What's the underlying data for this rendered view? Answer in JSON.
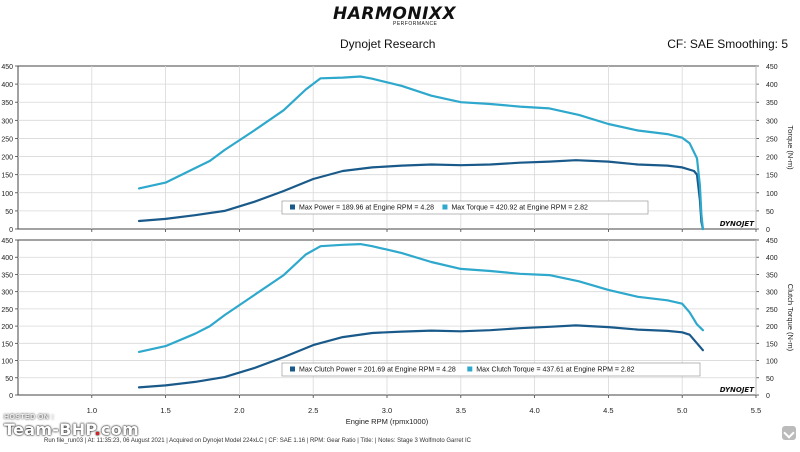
{
  "header": {
    "logo_text": "HARMONIXX",
    "logo_sub": "PERFORMANCE",
    "title": "Dynojet Research",
    "cf_smoothing": "CF: SAE Smoothing: 5"
  },
  "footer": {
    "run_info": "Run file_run03 | At: 11:35:23, 06 August 2021 | Acquired on Dynojet Model 224xLC | CF: SAE 1.16 | RPM: Gear Ratio | Title: | Notes: Stage 3 Wolfmoto Garret IC",
    "hosted_label": "HOSTED ON :",
    "watermark_main": "Team-BHP",
    "watermark_dot": ".",
    "watermark_tld": "com"
  },
  "colors": {
    "power": "#1a5a8a",
    "torque": "#2ea8cc",
    "axis": "#444444",
    "grid": "#d8d8d8"
  },
  "chart_data": [
    {
      "type": "line",
      "xlim": [
        0.5,
        5.5
      ],
      "xticks": [
        "1.0",
        "1.5",
        "2.0",
        "2.5",
        "3.0",
        "3.5",
        "4.0",
        "4.5",
        "5.0",
        "5.5"
      ],
      "ylim": [
        0,
        450
      ],
      "yticks": [
        "0",
        "50",
        "100",
        "150",
        "200",
        "250",
        "300",
        "350",
        "400",
        "450"
      ],
      "ylabel_right": "Torque (N-m)",
      "grid": true,
      "brand": "DYNOJET",
      "legend": [
        {
          "text": "Max Power = 189.96 at Engine RPM = 4.28",
          "series": 0
        },
        {
          "text": "Max Torque = 420.92 at Engine RPM = 2.82",
          "series": 1
        }
      ],
      "series": [
        {
          "name": "Power",
          "color": "#1a5a8a",
          "x": [
            1.32,
            1.5,
            1.7,
            1.9,
            2.1,
            2.3,
            2.5,
            2.7,
            2.9,
            3.1,
            3.3,
            3.5,
            3.7,
            3.9,
            4.1,
            4.28,
            4.5,
            4.7,
            4.9,
            5.0,
            5.08,
            5.1,
            5.12,
            5.13,
            5.14
          ],
          "y": [
            22,
            28,
            38,
            50,
            75,
            105,
            138,
            160,
            170,
            175,
            178,
            176,
            178,
            183,
            186,
            190,
            186,
            178,
            175,
            170,
            160,
            150,
            80,
            20,
            0
          ]
        },
        {
          "name": "Torque",
          "color": "#2ea8cc",
          "x": [
            1.32,
            1.5,
            1.7,
            1.8,
            1.9,
            2.1,
            2.3,
            2.45,
            2.55,
            2.7,
            2.82,
            2.9,
            3.0,
            3.1,
            3.3,
            3.5,
            3.7,
            3.9,
            4.1,
            4.3,
            4.5,
            4.7,
            4.9,
            5.0,
            5.05,
            5.1,
            5.12,
            5.13,
            5.14
          ],
          "y": [
            112,
            128,
            168,
            188,
            218,
            272,
            328,
            385,
            416,
            418,
            421,
            415,
            405,
            395,
            368,
            350,
            345,
            338,
            333,
            315,
            290,
            272,
            262,
            252,
            237,
            195,
            120,
            40,
            0
          ]
        }
      ]
    },
    {
      "type": "line",
      "xlim": [
        0.5,
        5.5
      ],
      "xticks": [
        "1.0",
        "1.5",
        "2.0",
        "2.5",
        "3.0",
        "3.5",
        "4.0",
        "4.5",
        "5.0",
        "5.5"
      ],
      "ylim": [
        0,
        450
      ],
      "yticks": [
        "0",
        "50",
        "100",
        "150",
        "200",
        "250",
        "300",
        "350",
        "400",
        "450"
      ],
      "xlabel": "Engine RPM (rpmx1000)",
      "ylabel_right": "Clutch Torque (N-m)",
      "grid": true,
      "brand": "DYNOJET",
      "legend": [
        {
          "text": "Max Clutch Power = 201.69 at Engine RPM = 4.28",
          "series": 0
        },
        {
          "text": "Max Clutch Torque = 437.61 at Engine RPM = 2.82",
          "series": 1
        }
      ],
      "series": [
        {
          "name": "Clutch Power",
          "color": "#1a5a8a",
          "x": [
            1.32,
            1.5,
            1.7,
            1.9,
            2.1,
            2.3,
            2.5,
            2.7,
            2.9,
            3.1,
            3.3,
            3.5,
            3.7,
            3.9,
            4.1,
            4.28,
            4.5,
            4.7,
            4.9,
            5.0,
            5.05,
            5.1,
            5.14
          ],
          "y": [
            22,
            28,
            38,
            52,
            78,
            110,
            145,
            168,
            180,
            184,
            187,
            185,
            188,
            194,
            198,
            202,
            197,
            190,
            186,
            182,
            175,
            150,
            130
          ]
        },
        {
          "name": "Clutch Torque",
          "color": "#2ea8cc",
          "x": [
            1.32,
            1.5,
            1.7,
            1.8,
            1.9,
            2.1,
            2.3,
            2.45,
            2.55,
            2.7,
            2.82,
            2.9,
            3.0,
            3.1,
            3.3,
            3.5,
            3.7,
            3.9,
            4.1,
            4.3,
            4.5,
            4.7,
            4.9,
            5.0,
            5.05,
            5.1,
            5.14
          ],
          "y": [
            125,
            142,
            178,
            200,
            232,
            290,
            348,
            408,
            432,
            436,
            438,
            432,
            422,
            412,
            386,
            366,
            360,
            352,
            348,
            330,
            305,
            285,
            275,
            265,
            240,
            205,
            188
          ]
        }
      ]
    }
  ]
}
